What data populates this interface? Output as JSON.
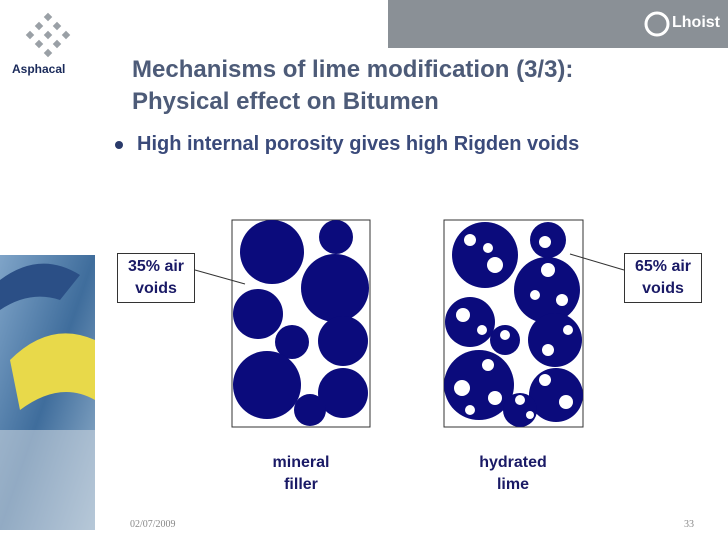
{
  "header": {
    "left_logo": "Asphacal",
    "right_logo": "Lhoist"
  },
  "title": {
    "line1": "Mechanisms of lime modification (3/3):",
    "line2": "Physical effect on Bitumen"
  },
  "bullet": "High internal porosity gives high Rigden voids",
  "callouts": {
    "left": "35% air voids",
    "right": "65% air voids"
  },
  "labels": {
    "left": "mineral filler",
    "right": "hydrated lime"
  },
  "footer": {
    "date": "02/07/2009",
    "page": "33"
  }
}
